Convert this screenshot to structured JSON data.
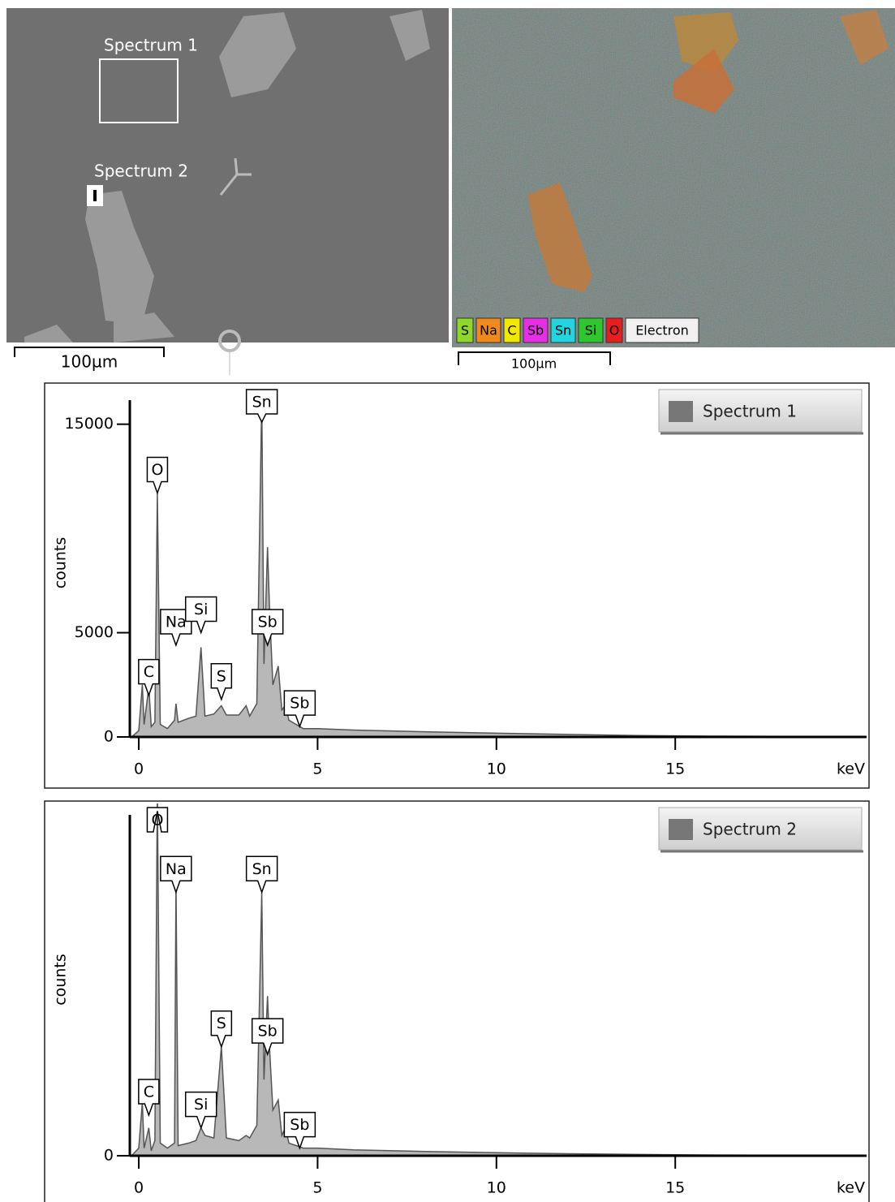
{
  "images": {
    "left": {
      "regions": [
        "Spectrum 1",
        "Spectrum 2"
      ],
      "scale_bar": "100µm"
    },
    "right": {
      "legend": [
        {
          "text": "S",
          "color": "#8fd82a"
        },
        {
          "text": "Na",
          "color": "#f08a1c"
        },
        {
          "text": "C",
          "color": "#f2e800"
        },
        {
          "text": "Sb",
          "color": "#e62ee6"
        },
        {
          "text": "Sn",
          "color": "#22d6e0"
        },
        {
          "text": "Si",
          "color": "#2ec82e"
        },
        {
          "text": "O",
          "color": "#e81e1e"
        },
        {
          "text": "Electron",
          "color": "#f0f0f0"
        }
      ],
      "scale_bar": "100µm"
    }
  },
  "chart_data": [
    {
      "type": "area",
      "x_label": "keV",
      "y_label": "counts",
      "x": [
        -0.2,
        0.0,
        0.1,
        0.15,
        0.28,
        0.35,
        0.45,
        0.52,
        0.6,
        0.8,
        1.0,
        1.04,
        1.1,
        1.4,
        1.6,
        1.74,
        1.85,
        2.1,
        2.31,
        2.45,
        2.8,
        3.0,
        3.1,
        3.3,
        3.44,
        3.5,
        3.6,
        3.66,
        3.75,
        3.9,
        4.0,
        4.1,
        4.2,
        4.4,
        4.6,
        5,
        6,
        8,
        10,
        12,
        14,
        16,
        18,
        20.3
      ],
      "series": [
        {
          "name": "Spectrum 1",
          "color": "#555555",
          "values": [
            0,
            300,
            2500,
            600,
            2400,
            500,
            700,
            11700,
            600,
            400,
            800,
            1600,
            700,
            900,
            1000,
            4300,
            1000,
            1100,
            1500,
            1050,
            1050,
            1500,
            1000,
            1600,
            16300,
            3500,
            9100,
            6000,
            2500,
            3400,
            1300,
            1500,
            800,
            600,
            400,
            400,
            330,
            250,
            180,
            120,
            70,
            40,
            30,
            20
          ]
        }
      ],
      "xlim": [
        -0.25,
        20.35
      ],
      "ylim": [
        0,
        16700
      ],
      "xticks": [
        0,
        5,
        10,
        15
      ],
      "yticks": [
        0,
        5000,
        15000
      ],
      "annotations": [
        {
          "text": "C",
          "x": 0.28,
          "y": 2000
        },
        {
          "text": "O",
          "x": 0.52,
          "y": 11700
        },
        {
          "text": "Na",
          "x": 1.04,
          "y": 4400
        },
        {
          "text": "Si",
          "x": 1.74,
          "y": 5000
        },
        {
          "text": "S",
          "x": 2.31,
          "y": 1800
        },
        {
          "text": "Sn",
          "x": 3.44,
          "y": 15100
        },
        {
          "text": "Sb",
          "x": 3.6,
          "y": 4400
        },
        {
          "text": "Sb",
          "x": 4.5,
          "y": 500
        }
      ]
    },
    {
      "type": "area",
      "x_label": "keV",
      "y_label": "counts",
      "x": [
        -0.2,
        0.0,
        0.1,
        0.15,
        0.28,
        0.35,
        0.45,
        0.52,
        0.6,
        0.8,
        1.0,
        1.04,
        1.1,
        1.4,
        1.6,
        1.74,
        1.85,
        2.1,
        2.31,
        2.45,
        2.8,
        3.0,
        3.1,
        3.3,
        3.44,
        3.5,
        3.6,
        3.66,
        3.75,
        3.9,
        4.0,
        4.1,
        4.2,
        4.4,
        4.6,
        5,
        6,
        8,
        10,
        12,
        14,
        16,
        18,
        20.3
      ],
      "series": [
        {
          "name": "Spectrum 2",
          "color": "#555555",
          "values": [
            0,
            300,
            2100,
            300,
            1100,
            200,
            600,
            14500,
            500,
            300,
            500,
            10900,
            400,
            500,
            600,
            1100,
            800,
            700,
            4300,
            700,
            600,
            800,
            700,
            1200,
            10400,
            3000,
            6300,
            4200,
            1800,
            2200,
            800,
            1100,
            500,
            400,
            300,
            300,
            230,
            170,
            120,
            80,
            50,
            30,
            20,
            10
          ]
        }
      ],
      "xlim": [
        -0.25,
        20.35
      ],
      "ylim": [
        0,
        13900
      ],
      "xticks": [
        0,
        5,
        10,
        15
      ],
      "yticks": [
        0
      ],
      "annotations": [
        {
          "text": "C",
          "x": 0.28,
          "y": 1600
        },
        {
          "text": "O",
          "x": 0.52,
          "y": 13600
        },
        {
          "text": "Na",
          "x": 1.04,
          "y": 10400
        },
        {
          "text": "Si",
          "x": 1.74,
          "y": 1100
        },
        {
          "text": "S",
          "x": 2.31,
          "y": 4300
        },
        {
          "text": "Sn",
          "x": 3.44,
          "y": 10400
        },
        {
          "text": "Sb",
          "x": 3.6,
          "y": 4000
        },
        {
          "text": "Sb",
          "x": 4.5,
          "y": 300
        }
      ]
    }
  ]
}
